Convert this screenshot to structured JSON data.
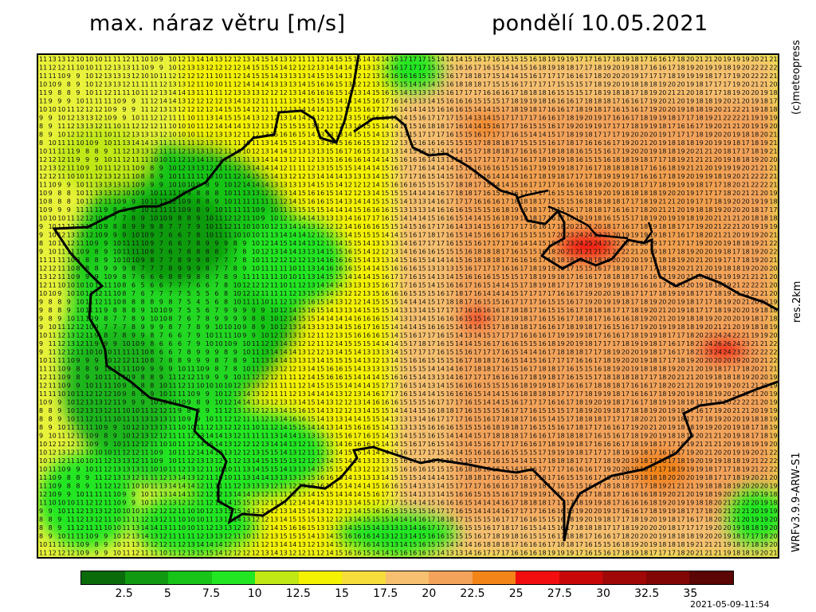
{
  "title": {
    "left": "max. náraz větru [m/s]",
    "right": "pondělí 10.05.2021"
  },
  "side_labels": {
    "copyright": "(c)meteopress",
    "resolution": "res.2km",
    "model": "WRFv3.9.9-ARW-S1"
  },
  "legend": {
    "colors": [
      "#0a6b0a",
      "#119a11",
      "#17c417",
      "#22e622",
      "#bfe814",
      "#f5f200",
      "#f7dd3c",
      "#f6c070",
      "#f3a35a",
      "#f28418",
      "#f20e0e",
      "#c80808",
      "#a00808",
      "#820606",
      "#5c0505"
    ],
    "labels": [
      "2.5",
      "5",
      "7.5",
      "10",
      "12.5",
      "15",
      "17.5",
      "20",
      "22.5",
      "25",
      "27.5",
      "30",
      "32.5",
      "35"
    ]
  },
  "timestamp": "2021-05-09-11:54",
  "map": {
    "layer": "wind gust grid",
    "grid_values": "printed per cell, roughly 8-28 m/s",
    "colormap": [
      "#0a6b0a",
      "#119a11",
      "#17c417",
      "#22e622",
      "#bfe814",
      "#f5f200",
      "#f7dd3c",
      "#f6c070",
      "#f3a35a",
      "#f28418",
      "#f20e0e",
      "#c80808",
      "#a00808",
      "#820606",
      "#5c0505"
    ]
  }
}
